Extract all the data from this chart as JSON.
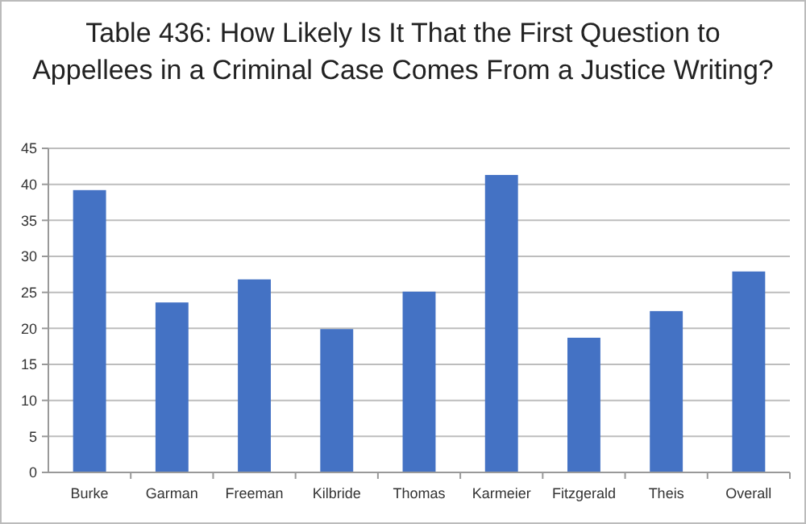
{
  "chart_data": {
    "type": "bar",
    "title": "Table 436: How Likely Is It That the First Question to Appellees in a Criminal Case Comes From a Justice Writing?",
    "categories": [
      "Burke",
      "Garman",
      "Freeman",
      "Kilbride",
      "Thomas",
      "Karmeier",
      "Fitzgerald",
      "Theis",
      "Overall"
    ],
    "values": [
      39.2,
      23.6,
      26.8,
      19.9,
      25.1,
      41.3,
      18.7,
      22.4,
      27.9
    ],
    "color": "#4472c4",
    "ylim": [
      0,
      45
    ],
    "yticks": [
      0,
      5,
      10,
      15,
      20,
      25,
      30,
      35,
      40,
      45
    ],
    "grid": "y"
  }
}
